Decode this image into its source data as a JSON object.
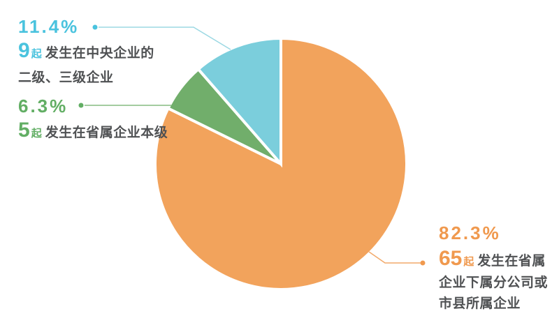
{
  "chart_data": {
    "type": "pie",
    "direction": "clockwise",
    "start_angle_deg": 0,
    "legend_position": "callout-labels",
    "slices": [
      {
        "id": "provincial-sub",
        "label": "发生在省属企业下属分公司或市县所属企业",
        "count": 65,
        "percent": 82.3,
        "color": "#F2A35C"
      },
      {
        "id": "provincial-hq",
        "label": "发生在省属企业本级",
        "count": 5,
        "percent": 6.3,
        "color": "#71AE6B"
      },
      {
        "id": "central",
        "label": "发生在中央企业的二级、三级企业",
        "count": 9,
        "percent": 11.4,
        "color": "#7BCEDC"
      }
    ]
  },
  "labels": {
    "central": {
      "percent": "11.4%",
      "count": "9",
      "unit": "起",
      "line1": "发生在中央企业的",
      "line2": "二级、三级企业",
      "accent": "#4AC3DE",
      "line_color": "#9BD8E3"
    },
    "provincial_hq": {
      "percent": "6.3%",
      "count": "5",
      "unit": "起",
      "line1": "发生在省属企业本级",
      "accent": "#62AE64",
      "line_color": "#86BC81"
    },
    "provincial_sub": {
      "percent": "82.3%",
      "count": "65",
      "unit": "起",
      "line1": "发生在省属",
      "line2": "企业下属分公司或",
      "line3": "市县所属企业",
      "accent": "#F0994E",
      "line_color": "#F2A96A"
    }
  },
  "colors": {
    "background": "#FFFFFF",
    "text_dark": "#4F5153",
    "slice_gap": "#FFFFFF"
  }
}
